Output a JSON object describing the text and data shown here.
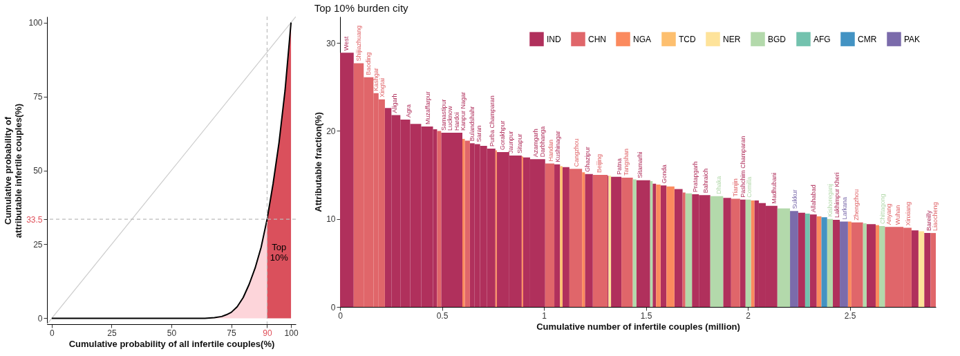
{
  "chart_data": [
    {
      "type": "line",
      "xlabel": "Cumulative probability of all infertile couples(%)",
      "ylabel": "Cumulative probability of\nattributable infertile couples(%)",
      "xlim": [
        -2,
        102
      ],
      "ylim": [
        -2,
        102
      ],
      "xticks": [
        0,
        25,
        50,
        75,
        90,
        100
      ],
      "yticks": [
        0,
        25,
        33.5,
        50,
        75,
        100
      ],
      "grid": false,
      "series": [
        {
          "type": "line",
          "color": "#cccccc",
          "x": [
            -2,
            102
          ],
          "values": [
            -2,
            102
          ]
        },
        {
          "type": "area",
          "color": "#fdd5da",
          "x": [
            64,
            68,
            71,
            73,
            75,
            77.5,
            80,
            82.5,
            85,
            87.5,
            90
          ],
          "values": [
            0,
            0.2,
            0.6,
            1.2,
            2,
            3.9,
            7,
            11.5,
            17,
            24,
            33.5
          ]
        },
        {
          "type": "area",
          "color": "#da505c",
          "x": [
            90,
            92.5,
            95,
            97.5,
            100
          ],
          "values": [
            33.5,
            45.5,
            59.5,
            77,
            100
          ]
        },
        {
          "type": "line",
          "color": "#000000",
          "x": [
            0,
            64,
            68,
            71,
            73,
            75,
            77.5,
            80,
            82.5,
            85,
            87.5,
            90,
            92.5,
            95,
            97.5,
            100
          ],
          "values": [
            0,
            0,
            0.2,
            0.6,
            1.2,
            2,
            3.9,
            7,
            11.5,
            17,
            24,
            33.5,
            45.5,
            59.5,
            77,
            100
          ]
        }
      ],
      "ref_lines": [
        {
          "axis": "x",
          "value": 90,
          "color": "#bbbbbb",
          "line_style": "dashed"
        },
        {
          "axis": "y",
          "value": 33.5,
          "color": "#bbbbbb",
          "line_style": "dashed"
        }
      ],
      "annotations": [
        "Top 10%"
      ]
    },
    {
      "type": "histogram",
      "title": "Top 10% burden city",
      "xlabel": "Cumulative number of infertile couples (million)",
      "ylabel": "Attributable fraction(%)",
      "xlim": [
        0,
        2.922
      ],
      "ylim": [
        0,
        33
      ],
      "xticks": [
        0,
        0.5,
        1,
        1.5,
        2,
        2.5
      ],
      "yticks": [
        0,
        10,
        20,
        30
      ],
      "grid": false,
      "legend": "top right",
      "bins": [
        0,
        0.067,
        0.116,
        0.164,
        0.189,
        0.22,
        0.252,
        0.296,
        0.344,
        0.398,
        0.456,
        0.476,
        0.496,
        0.6,
        0.612,
        0.637,
        0.66,
        0.687,
        0.721,
        0.762,
        0.769,
        0.83,
        0.891,
        0.898,
        0.932,
        1.006,
        1.051,
        1.079,
        1.091,
        1.125,
        1.187,
        1.201,
        1.24,
        1.312,
        1.317,
        1.329,
        1.38,
        1.436,
        1.453,
        1.521,
        1.533,
        1.55,
        1.572,
        1.601,
        1.64,
        1.68,
        1.694,
        1.726,
        1.76,
        1.816,
        1.879,
        1.918,
        1.962,
        1.989,
        2.015,
        2.032,
        2.054,
        2.088,
        2.145,
        2.207,
        2.247,
        2.281,
        2.304,
        2.338,
        2.361,
        2.389,
        2.417,
        2.451,
        2.491,
        2.508,
        2.565,
        2.582,
        2.627,
        2.644,
        2.672,
        2.763,
        2.803,
        2.837,
        2.865,
        2.896,
        2.922
      ],
      "series": [
        {
          "name": "IND",
          "color": "#b0305c",
          "values": [
            28.9,
            null,
            null,
            null,
            null,
            22.6,
            21.8,
            21.3,
            20.8,
            20.5,
            20.2,
            null,
            19.8,
            null,
            null,
            18.6,
            18.5,
            18.3,
            18.0,
            null,
            17.6,
            17.2,
            null,
            17.0,
            16.8,
            null,
            16.2,
            null,
            15.9,
            null,
            null,
            15.1,
            null,
            14.9,
            null,
            14.8,
            null,
            null,
            14.4,
            null,
            14.0,
            null,
            13.8,
            null,
            13.4,
            null,
            null,
            12.8,
            12.7,
            null,
            12.4,
            null,
            12.2,
            null,
            null,
            12.1,
            11.8,
            11.5,
            null,
            null,
            10.7,
            null,
            10.5,
            null,
            null,
            null,
            9.9,
            null,
            null,
            null,
            null,
            9.4,
            null,
            null,
            null,
            null,
            8.7,
            null,
            8.4,
            null
          ]
        },
        {
          "name": "CHN",
          "color": "#e0666a",
          "values": [
            null,
            27.7,
            26.1,
            24.3,
            23.6,
            null,
            null,
            null,
            null,
            null,
            null,
            20.0,
            null,
            null,
            18.9,
            null,
            null,
            null,
            null,
            null,
            null,
            null,
            null,
            null,
            null,
            16.3,
            null,
            null,
            null,
            15.7,
            null,
            null,
            15.0,
            null,
            null,
            null,
            14.7,
            null,
            null,
            null,
            null,
            null,
            null,
            null,
            null,
            13.0,
            null,
            null,
            null,
            null,
            null,
            12.3,
            null,
            null,
            null,
            null,
            null,
            null,
            null,
            null,
            null,
            null,
            null,
            null,
            null,
            null,
            null,
            null,
            null,
            9.6,
            null,
            null,
            null,
            null,
            9.1,
            9.0,
            null,
            null,
            null,
            8.4
          ]
        },
        {
          "name": "NGA",
          "color": "#fb8a5e",
          "values": [
            null,
            null,
            null,
            null,
            null,
            null,
            null,
            null,
            null,
            null,
            null,
            null,
            null,
            19.1,
            null,
            null,
            null,
            null,
            null,
            17.8,
            null,
            null,
            17.1,
            null,
            null,
            null,
            null,
            null,
            null,
            null,
            15.3,
            null,
            null,
            null,
            null,
            null,
            null,
            null,
            null,
            null,
            null,
            13.9,
            null,
            13.7,
            null,
            null,
            null,
            null,
            null,
            null,
            null,
            null,
            null,
            null,
            12.1,
            null,
            null,
            null,
            null,
            null,
            null,
            null,
            null,
            10.3,
            null,
            null,
            null,
            null,
            9.7,
            null,
            null,
            null,
            9.3,
            null,
            null,
            null,
            null,
            null,
            null,
            null
          ]
        },
        {
          "name": "TCD",
          "color": "#fdbf6f",
          "values": [
            null,
            null,
            null,
            null,
            null,
            null,
            null,
            null,
            null,
            null,
            null,
            null,
            null,
            null,
            null,
            null,
            null,
            null,
            null,
            null,
            null,
            null,
            null,
            null,
            null,
            null,
            null,
            16.0,
            null,
            null,
            null,
            null,
            null,
            null,
            null,
            null,
            null,
            null,
            null,
            null,
            null,
            null,
            null,
            null,
            null,
            null,
            null,
            null,
            null,
            null,
            null,
            null,
            null,
            null,
            null,
            null,
            null,
            null,
            null,
            null,
            null,
            null,
            null,
            null,
            null,
            null,
            null,
            null,
            null,
            null,
            null,
            null,
            null,
            null,
            null,
            null,
            null,
            null,
            null,
            null
          ]
        },
        {
          "name": "NER",
          "color": "#fee39a",
          "values": [
            null,
            null,
            null,
            null,
            null,
            null,
            null,
            null,
            null,
            null,
            null,
            null,
            null,
            null,
            null,
            null,
            null,
            null,
            null,
            null,
            null,
            null,
            null,
            null,
            null,
            null,
            null,
            null,
            null,
            null,
            null,
            null,
            null,
            null,
            14.9,
            null,
            null,
            null,
            null,
            null,
            null,
            null,
            null,
            null,
            null,
            null,
            null,
            null,
            null,
            null,
            null,
            null,
            null,
            null,
            null,
            null,
            null,
            null,
            null,
            null,
            null,
            null,
            null,
            null,
            null,
            null,
            null,
            null,
            null,
            null,
            null,
            null,
            null,
            null,
            null,
            null,
            null,
            8.6,
            null,
            null
          ]
        },
        {
          "name": "BGD",
          "color": "#b3d9ab",
          "values": [
            null,
            null,
            null,
            null,
            null,
            null,
            null,
            null,
            null,
            null,
            null,
            null,
            null,
            null,
            null,
            null,
            null,
            null,
            null,
            null,
            null,
            null,
            null,
            null,
            null,
            null,
            null,
            null,
            null,
            null,
            null,
            null,
            null,
            null,
            null,
            null,
            null,
            14.5,
            null,
            14.3,
            null,
            null,
            null,
            null,
            null,
            null,
            12.9,
            null,
            null,
            12.6,
            null,
            null,
            null,
            12.2,
            null,
            null,
            null,
            null,
            11.2,
            null,
            null,
            null,
            null,
            null,
            null,
            10.0,
            null,
            null,
            null,
            null,
            9.5,
            null,
            null,
            9.2,
            null,
            null,
            null,
            null,
            null,
            null
          ]
        },
        {
          "name": "AFG",
          "color": "#73c2ae",
          "values": [
            null,
            null,
            null,
            null,
            null,
            null,
            null,
            null,
            null,
            null,
            null,
            null,
            null,
            null,
            null,
            null,
            null,
            null,
            null,
            null,
            null,
            null,
            null,
            null,
            null,
            null,
            null,
            null,
            null,
            null,
            null,
            null,
            null,
            null,
            null,
            null,
            null,
            null,
            null,
            null,
            null,
            null,
            null,
            null,
            null,
            null,
            null,
            null,
            null,
            null,
            null,
            null,
            null,
            null,
            null,
            null,
            null,
            null,
            null,
            null,
            null,
            10.6,
            null,
            null,
            null,
            null,
            null,
            null,
            null,
            null,
            null,
            null,
            null,
            null,
            null,
            null,
            null,
            null,
            null,
            null
          ]
        },
        {
          "name": "CMR",
          "color": "#4393c3",
          "values": [
            null,
            null,
            null,
            null,
            null,
            null,
            null,
            null,
            null,
            null,
            null,
            null,
            null,
            null,
            null,
            null,
            null,
            null,
            null,
            null,
            null,
            null,
            null,
            null,
            null,
            null,
            null,
            null,
            null,
            null,
            null,
            null,
            null,
            null,
            null,
            null,
            null,
            null,
            null,
            null,
            null,
            null,
            null,
            null,
            null,
            null,
            null,
            null,
            null,
            null,
            null,
            null,
            null,
            null,
            null,
            null,
            null,
            null,
            null,
            null,
            null,
            null,
            null,
            null,
            10.2,
            null,
            null,
            null,
            null,
            null,
            null,
            null,
            null,
            null,
            null,
            null,
            null,
            null,
            null,
            null
          ]
        },
        {
          "name": "PAK",
          "color": "#7b6bab",
          "values": [
            null,
            null,
            null,
            null,
            null,
            null,
            null,
            null,
            null,
            null,
            null,
            null,
            null,
            null,
            null,
            null,
            null,
            null,
            null,
            null,
            null,
            null,
            null,
            null,
            null,
            null,
            null,
            null,
            null,
            null,
            null,
            null,
            null,
            null,
            null,
            null,
            null,
            null,
            null,
            null,
            null,
            null,
            null,
            null,
            null,
            null,
            null,
            null,
            null,
            null,
            null,
            null,
            null,
            null,
            null,
            null,
            null,
            null,
            null,
            10.9,
            null,
            null,
            null,
            null,
            null,
            null,
            null,
            9.7,
            null,
            null,
            null,
            null,
            null,
            null,
            null,
            null,
            null,
            null,
            null,
            null
          ]
        }
      ],
      "annotations": [
        {
          "text": "West",
          "x": 0.03,
          "y": 28.9
        },
        {
          "text": "Shijiazhuang",
          "x": 0.09,
          "y": 27.7
        },
        {
          "text": "Baoding",
          "x": 0.14,
          "y": 26.1
        },
        {
          "text": "Kashgar",
          "x": 0.176,
          "y": 24.3
        },
        {
          "text": "Xingtai",
          "x": 0.205,
          "y": 23.6
        },
        {
          "text": "Aligarh",
          "x": 0.269,
          "y": 21.8
        },
        {
          "text": "Agra",
          "x": 0.337,
          "y": 21.3
        },
        {
          "text": "Muzaffarpur",
          "x": 0.432,
          "y": 20.5
        },
        {
          "text": "Samastipur",
          "x": 0.507,
          "y": 19.8
        },
        {
          "text": "Lucknow",
          "x": 0.515,
          "y": 19.8
        },
        {
          "text": "Hardoi",
          "x": 0.522,
          "y": 19.8
        },
        {
          "text": "Kanpur Nagar",
          "x": 0.53,
          "y": 19.8
        },
        {
          "text": "Bulandshahr",
          "x": 0.649,
          "y": 18.6
        },
        {
          "text": "Saran",
          "x": 0.677,
          "y": 18.5
        },
        {
          "text": "Purba Champaran",
          "x": 0.745,
          "y": 18.0
        },
        {
          "text": "Gorakhpur",
          "x": 0.796,
          "y": 17.6
        },
        {
          "text": "Jaunpur",
          "x": 0.836,
          "y": 17.2
        },
        {
          "text": "Sitapur",
          "x": 0.881,
          "y": 17.2
        },
        {
          "text": "Azamgarh",
          "x": 0.96,
          "y": 16.8
        },
        {
          "text": "Darbhanga",
          "x": 0.983,
          "y": 16.8
        },
        {
          "text": "Handan",
          "x": 1.034,
          "y": 16.3
        },
        {
          "text": "Kushinagar",
          "x": 1.066,
          "y": 16.2
        },
        {
          "text": "Cangzhou",
          "x": 1.159,
          "y": 15.7
        },
        {
          "text": "Ghazipur",
          "x": 1.215,
          "y": 15.1
        },
        {
          "text": "Beijing",
          "x": 1.272,
          "y": 15.0
        },
        {
          "text": "Patna",
          "x": 1.368,
          "y": 14.8
        },
        {
          "text": "Tangshan",
          "x": 1.402,
          "y": 14.7
        },
        {
          "text": "Sitamarhi",
          "x": 1.47,
          "y": 14.4
        },
        {
          "text": "Gonda",
          "x": 1.59,
          "y": 13.8
        },
        {
          "text": "Pratapgarh",
          "x": 1.743,
          "y": 12.8
        },
        {
          "text": "Bahraich",
          "x": 1.794,
          "y": 12.7
        },
        {
          "text": "Dhaka",
          "x": 1.856,
          "y": 12.6
        },
        {
          "text": "Tianjin",
          "x": 1.939,
          "y": 12.3
        },
        {
          "text": "Pashchim Champaran",
          "x": 1.975,
          "y": 12.2
        },
        {
          "text": "Comilla",
          "x": 2.003,
          "y": 12.2
        },
        {
          "text": "Madhubani",
          "x": 2.128,
          "y": 11.5
        },
        {
          "text": "Sukkur",
          "x": 2.23,
          "y": 10.9
        },
        {
          "text": "Allahabad",
          "x": 2.321,
          "y": 10.5
        },
        {
          "text": "Kishoreganj",
          "x": 2.404,
          "y": 10.0
        },
        {
          "text": "Lakhimpur Kheri",
          "x": 2.434,
          "y": 9.9
        },
        {
          "text": "Larkana",
          "x": 2.474,
          "y": 9.7
        },
        {
          "text": "Zhengzhou",
          "x": 2.531,
          "y": 9.6
        },
        {
          "text": "Chittagong",
          "x": 2.661,
          "y": 9.2
        },
        {
          "text": "Anyang",
          "x": 2.689,
          "y": 9.1
        },
        {
          "text": "Wuhan",
          "x": 2.735,
          "y": 9.1
        },
        {
          "text": "Xinxiang",
          "x": 2.786,
          "y": 9.0
        },
        {
          "text": "Bareilly",
          "x": 2.888,
          "y": 8.4
        },
        {
          "text": "Liaocheng",
          "x": 2.911,
          "y": 8.4
        }
      ]
    }
  ]
}
